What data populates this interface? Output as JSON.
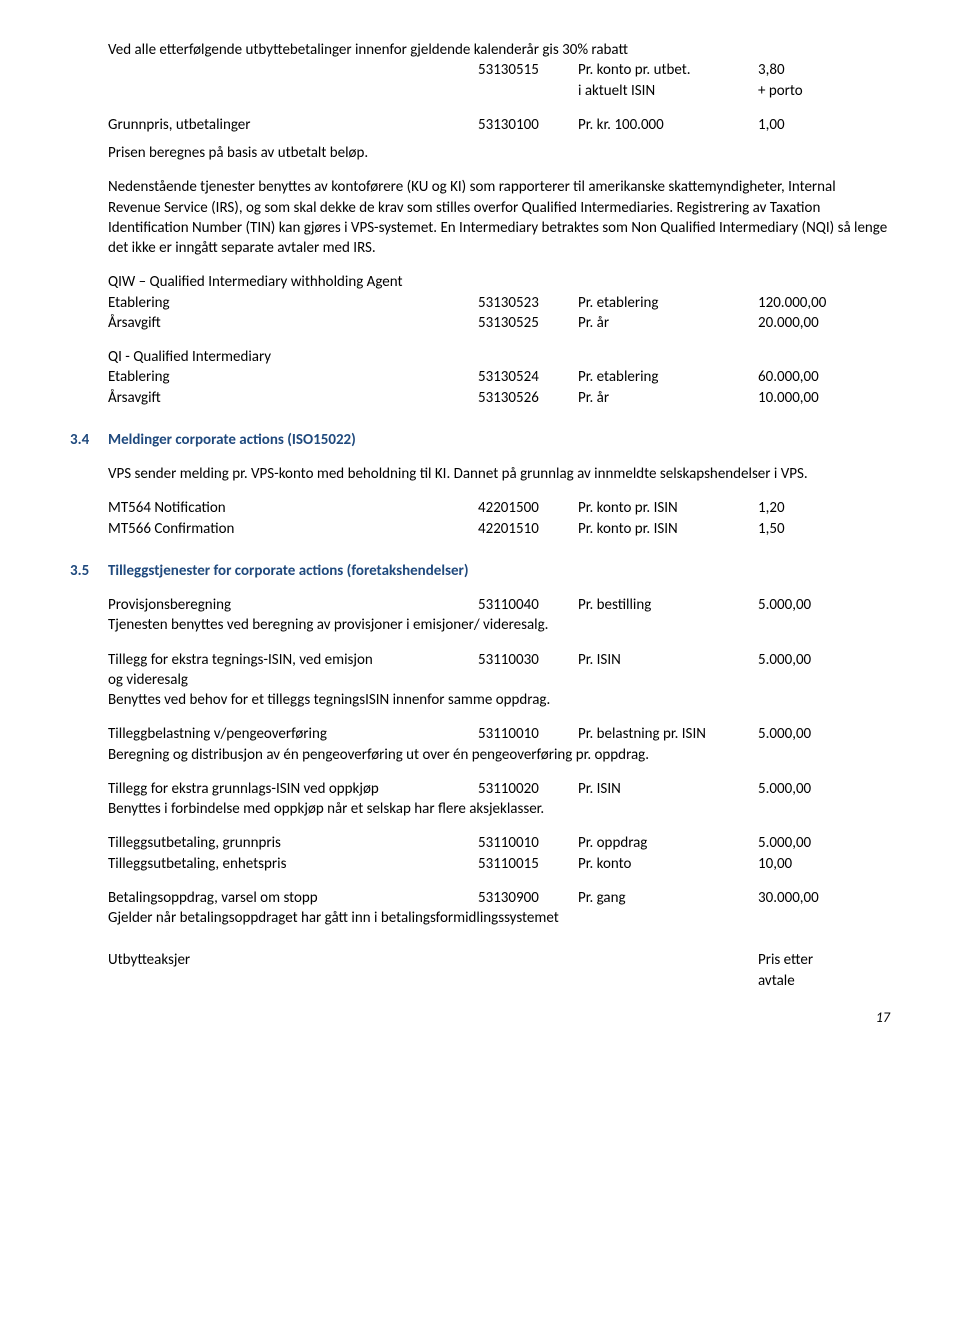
{
  "top": {
    "line1": "Ved alle etterfølgende utbyttebetalinger innenfor gjeldende kalenderår gis 30% rabatt",
    "r1_code": "53130515",
    "r1_unit": "Pr. konto pr. utbet.",
    "r1_price": "3,80",
    "r2_unit": "i aktuelt ISIN",
    "r2_price": "+ porto",
    "grunnpris_label": "Grunnpris, utbetalinger",
    "grunnpris_code": "53130100",
    "grunnpris_unit": "Pr. kr. 100.000",
    "grunnpris_price": "1,00",
    "prisen_label": "Prisen beregnes på basis av utbetalt beløp.",
    "neden_para": "Nedenstående tjenester benyttes av kontoførere (KU og KI) som rapporterer til amerikanske skattemyndigheter, Internal Revenue Service (IRS), og som skal dekke de krav som stilles overfor Qualified Intermediaries. Registrering av Taxation Identification Number (TIN) kan gjøres i VPS-systemet. En Intermediary betraktes som Non Qualified Intermediary (NQI) så lenge det ikke er inngått separate avtaler med IRS.",
    "qiw_title": "QIW – Qualified Intermediary withholding Agent",
    "qiw_et_label": "Etablering",
    "qiw_et_code": "53130523",
    "qiw_et_unit": "Pr. etablering",
    "qiw_et_price": "120.000,00",
    "qiw_aa_label": "Årsavgift",
    "qiw_aa_code": "53130525",
    "qiw_aa_unit": "Pr. år",
    "qiw_aa_price": "20.000,00",
    "qi_title": "QI - Qualified Intermediary",
    "qi_et_label": "Etablering",
    "qi_et_code": "53130524",
    "qi_et_unit": "Pr. etablering",
    "qi_et_price": "60.000,00",
    "qi_aa_label": "Årsavgift",
    "qi_aa_code": "53130526",
    "qi_aa_unit": "Pr. år",
    "qi_aa_price": "10.000,00"
  },
  "s34": {
    "num": "3.4",
    "title": "Meldinger corporate actions (ISO15022)",
    "intro": "VPS sender melding pr. VPS-konto med beholdning til KI. Dannet på grunnlag av innmeldte selskapshendelser i VPS.",
    "r1_label": "MT564 Notification",
    "r1_code": "42201500",
    "r1_unit": "Pr. konto pr. ISIN",
    "r1_price": "1,20",
    "r2_label": "MT566 Confirmation",
    "r2_code": "42201510",
    "r2_unit": "Pr. konto pr. ISIN",
    "r2_price": "1,50"
  },
  "s35": {
    "num": "3.5",
    "title": "Tilleggstjenester for corporate actions (foretakshendelser)",
    "prov_label": "Provisjonsberegning",
    "prov_code": "53110040",
    "prov_unit": "Pr. bestilling",
    "prov_price": "5.000,00",
    "prov_note": "Tjenesten benyttes ved beregning av provisjoner i emisjoner/ videresalg.",
    "tegn_label": "Tillegg for ekstra tegnings-ISIN, ved emisjon",
    "tegn_code": "53110030",
    "tegn_unit": "Pr. ISIN",
    "tegn_price": "5.000,00",
    "tegn_label2": "og videresalg",
    "tegn_note": "Benyttes ved behov for et tilleggs tegningsISIN innenfor samme oppdrag.",
    "belast_label": "Tilleggbelastning v/pengeoverføring",
    "belast_code": "53110010",
    "belast_unit": "Pr. belastning pr. ISIN",
    "belast_price": "5.000,00",
    "belast_note": "Beregning og distribusjon av én pengeoverføring ut over én pengeoverføring pr. oppdrag.",
    "grunn_label": "Tillegg for ekstra grunnlags-ISIN ved oppkjøp",
    "grunn_code": "53110020",
    "grunn_unit": "Pr. ISIN",
    "grunn_price": "5.000,00",
    "grunn_note": "Benyttes i forbindelse med oppkjøp når et selskap har flere aksjeklasser.",
    "utg_label": "Tilleggsutbetaling, grunnpris",
    "utg_code": "53110010",
    "utg_unit": "Pr. oppdrag",
    "utg_price": "5.000,00",
    "ute_label": "Tilleggsutbetaling, enhetspris",
    "ute_code": "53110015",
    "ute_unit": "Pr. konto",
    "ute_price": "10,00",
    "bet_label": "Betalingsoppdrag, varsel om stopp",
    "bet_code": "53130900",
    "bet_unit": "Pr. gang",
    "bet_price": "30.000,00",
    "bet_note": "Gjelder når betalingsoppdraget har gått inn i betalingsformidlingssystemet",
    "utb_label": "Utbytteaksjer",
    "utb_price1": "Pris etter",
    "utb_price2": "avtale"
  },
  "page_number": "17"
}
